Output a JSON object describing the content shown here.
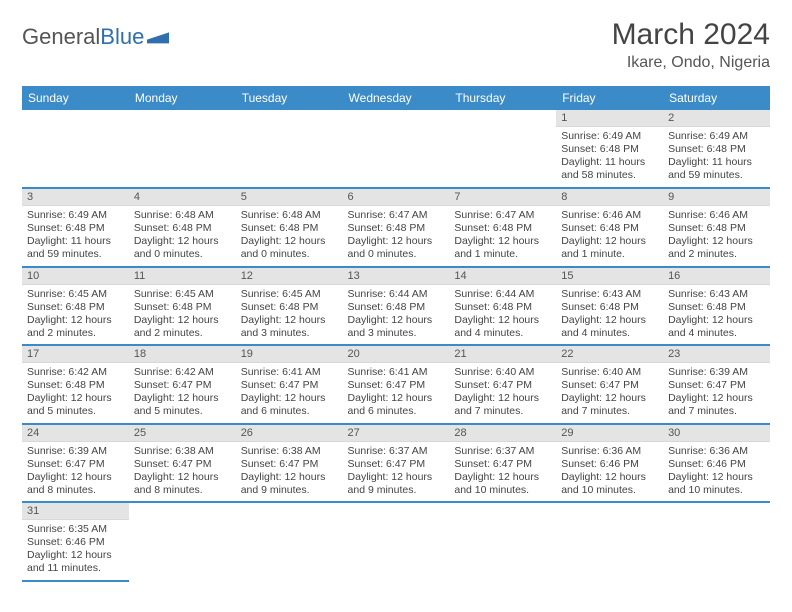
{
  "logo": {
    "word1": "General",
    "word2": "Blue"
  },
  "title": "March 2024",
  "location": "Ikare, Ondo, Nigeria",
  "weekdays": [
    "Sunday",
    "Monday",
    "Tuesday",
    "Wednesday",
    "Thursday",
    "Friday",
    "Saturday"
  ],
  "colors": {
    "header_bg": "#3b8bc8",
    "header_text": "#ffffff",
    "row_divider": "#3b8bc8",
    "daynum_bg": "#e4e4e4",
    "logo_gray": "#555555",
    "logo_blue": "#2f6fad"
  },
  "grid": [
    [
      null,
      null,
      null,
      null,
      null,
      {
        "n": "1",
        "sunrise": "Sunrise: 6:49 AM",
        "sunset": "Sunset: 6:48 PM",
        "daylight": "Daylight: 11 hours and 58 minutes."
      },
      {
        "n": "2",
        "sunrise": "Sunrise: 6:49 AM",
        "sunset": "Sunset: 6:48 PM",
        "daylight": "Daylight: 11 hours and 59 minutes."
      }
    ],
    [
      {
        "n": "3",
        "sunrise": "Sunrise: 6:49 AM",
        "sunset": "Sunset: 6:48 PM",
        "daylight": "Daylight: 11 hours and 59 minutes."
      },
      {
        "n": "4",
        "sunrise": "Sunrise: 6:48 AM",
        "sunset": "Sunset: 6:48 PM",
        "daylight": "Daylight: 12 hours and 0 minutes."
      },
      {
        "n": "5",
        "sunrise": "Sunrise: 6:48 AM",
        "sunset": "Sunset: 6:48 PM",
        "daylight": "Daylight: 12 hours and 0 minutes."
      },
      {
        "n": "6",
        "sunrise": "Sunrise: 6:47 AM",
        "sunset": "Sunset: 6:48 PM",
        "daylight": "Daylight: 12 hours and 0 minutes."
      },
      {
        "n": "7",
        "sunrise": "Sunrise: 6:47 AM",
        "sunset": "Sunset: 6:48 PM",
        "daylight": "Daylight: 12 hours and 1 minute."
      },
      {
        "n": "8",
        "sunrise": "Sunrise: 6:46 AM",
        "sunset": "Sunset: 6:48 PM",
        "daylight": "Daylight: 12 hours and 1 minute."
      },
      {
        "n": "9",
        "sunrise": "Sunrise: 6:46 AM",
        "sunset": "Sunset: 6:48 PM",
        "daylight": "Daylight: 12 hours and 2 minutes."
      }
    ],
    [
      {
        "n": "10",
        "sunrise": "Sunrise: 6:45 AM",
        "sunset": "Sunset: 6:48 PM",
        "daylight": "Daylight: 12 hours and 2 minutes."
      },
      {
        "n": "11",
        "sunrise": "Sunrise: 6:45 AM",
        "sunset": "Sunset: 6:48 PM",
        "daylight": "Daylight: 12 hours and 2 minutes."
      },
      {
        "n": "12",
        "sunrise": "Sunrise: 6:45 AM",
        "sunset": "Sunset: 6:48 PM",
        "daylight": "Daylight: 12 hours and 3 minutes."
      },
      {
        "n": "13",
        "sunrise": "Sunrise: 6:44 AM",
        "sunset": "Sunset: 6:48 PM",
        "daylight": "Daylight: 12 hours and 3 minutes."
      },
      {
        "n": "14",
        "sunrise": "Sunrise: 6:44 AM",
        "sunset": "Sunset: 6:48 PM",
        "daylight": "Daylight: 12 hours and 4 minutes."
      },
      {
        "n": "15",
        "sunrise": "Sunrise: 6:43 AM",
        "sunset": "Sunset: 6:48 PM",
        "daylight": "Daylight: 12 hours and 4 minutes."
      },
      {
        "n": "16",
        "sunrise": "Sunrise: 6:43 AM",
        "sunset": "Sunset: 6:48 PM",
        "daylight": "Daylight: 12 hours and 4 minutes."
      }
    ],
    [
      {
        "n": "17",
        "sunrise": "Sunrise: 6:42 AM",
        "sunset": "Sunset: 6:48 PM",
        "daylight": "Daylight: 12 hours and 5 minutes."
      },
      {
        "n": "18",
        "sunrise": "Sunrise: 6:42 AM",
        "sunset": "Sunset: 6:47 PM",
        "daylight": "Daylight: 12 hours and 5 minutes."
      },
      {
        "n": "19",
        "sunrise": "Sunrise: 6:41 AM",
        "sunset": "Sunset: 6:47 PM",
        "daylight": "Daylight: 12 hours and 6 minutes."
      },
      {
        "n": "20",
        "sunrise": "Sunrise: 6:41 AM",
        "sunset": "Sunset: 6:47 PM",
        "daylight": "Daylight: 12 hours and 6 minutes."
      },
      {
        "n": "21",
        "sunrise": "Sunrise: 6:40 AM",
        "sunset": "Sunset: 6:47 PM",
        "daylight": "Daylight: 12 hours and 7 minutes."
      },
      {
        "n": "22",
        "sunrise": "Sunrise: 6:40 AM",
        "sunset": "Sunset: 6:47 PM",
        "daylight": "Daylight: 12 hours and 7 minutes."
      },
      {
        "n": "23",
        "sunrise": "Sunrise: 6:39 AM",
        "sunset": "Sunset: 6:47 PM",
        "daylight": "Daylight: 12 hours and 7 minutes."
      }
    ],
    [
      {
        "n": "24",
        "sunrise": "Sunrise: 6:39 AM",
        "sunset": "Sunset: 6:47 PM",
        "daylight": "Daylight: 12 hours and 8 minutes."
      },
      {
        "n": "25",
        "sunrise": "Sunrise: 6:38 AM",
        "sunset": "Sunset: 6:47 PM",
        "daylight": "Daylight: 12 hours and 8 minutes."
      },
      {
        "n": "26",
        "sunrise": "Sunrise: 6:38 AM",
        "sunset": "Sunset: 6:47 PM",
        "daylight": "Daylight: 12 hours and 9 minutes."
      },
      {
        "n": "27",
        "sunrise": "Sunrise: 6:37 AM",
        "sunset": "Sunset: 6:47 PM",
        "daylight": "Daylight: 12 hours and 9 minutes."
      },
      {
        "n": "28",
        "sunrise": "Sunrise: 6:37 AM",
        "sunset": "Sunset: 6:47 PM",
        "daylight": "Daylight: 12 hours and 10 minutes."
      },
      {
        "n": "29",
        "sunrise": "Sunrise: 6:36 AM",
        "sunset": "Sunset: 6:46 PM",
        "daylight": "Daylight: 12 hours and 10 minutes."
      },
      {
        "n": "30",
        "sunrise": "Sunrise: 6:36 AM",
        "sunset": "Sunset: 6:46 PM",
        "daylight": "Daylight: 12 hours and 10 minutes."
      }
    ],
    [
      {
        "n": "31",
        "sunrise": "Sunrise: 6:35 AM",
        "sunset": "Sunset: 6:46 PM",
        "daylight": "Daylight: 12 hours and 11 minutes."
      },
      null,
      null,
      null,
      null,
      null,
      null
    ]
  ]
}
